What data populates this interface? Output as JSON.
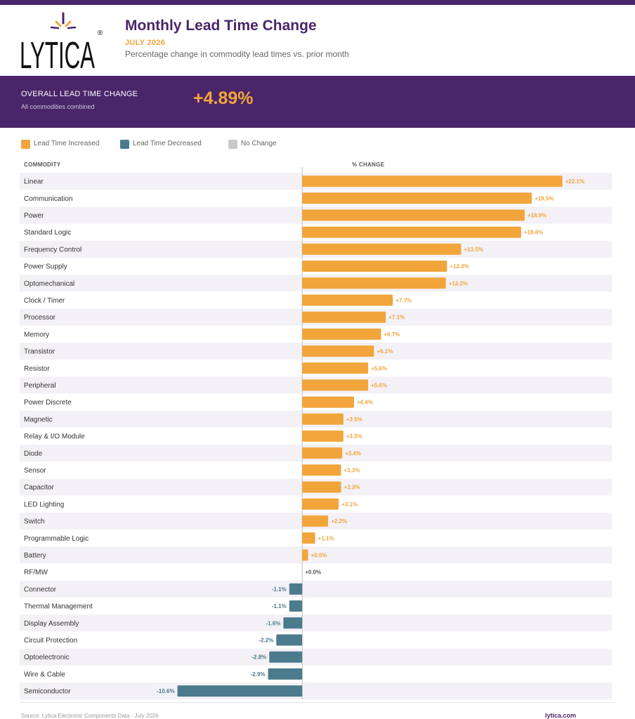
{
  "brand": {
    "logo_text": "LYTICA",
    "registered_mark": "®"
  },
  "header": {
    "title": "Monthly Lead Time Change",
    "month": "JULY 2026",
    "subtitle": "Percentage change in commodity lead times vs. prior month"
  },
  "summary": {
    "label": "OVERALL LEAD TIME CHANGE",
    "sublabel": "All commodities combined",
    "value": "+4.89%"
  },
  "legend": [
    {
      "label": "Lead Time Increased",
      "color": "#f2a53b"
    },
    {
      "label": "Lead Time Decreased",
      "color": "#4b7b8c"
    },
    {
      "label": "No Change",
      "color": "#c9c9c9"
    }
  ],
  "columns": {
    "commodity": "COMMODITY",
    "change": "% CHANGE"
  },
  "colors": {
    "increase": "#f2a53b",
    "decrease": "#4b7b8c",
    "nochange": "#c9c9c9",
    "brand_purple": "#4a2569",
    "row_stripe": "#f3f1f6"
  },
  "chart_data": {
    "type": "bar",
    "orientation": "horizontal",
    "categories": [
      "Linear",
      "Communication",
      "Power",
      "Standard Logic",
      "Frequency Control",
      "Power Supply",
      "Optomechanical",
      "Clock / Timer",
      "Processor",
      "Memory",
      "Transistor",
      "Resistor",
      "Peripheral",
      "Power Discrete",
      "Magnetic",
      "Relay & I/O Module",
      "Diode",
      "Sensor",
      "Capacitor",
      "LED Lighting",
      "Switch",
      "Programmable Logic",
      "Battery",
      "RF/MW",
      "Connector",
      "Thermal Management",
      "Display Assembly",
      "Circuit Protection",
      "Optoelectronic",
      "Wire & Cable",
      "Semiconductor"
    ],
    "values": [
      22.1,
      19.5,
      18.9,
      18.6,
      13.5,
      12.3,
      12.2,
      7.7,
      7.1,
      6.7,
      6.1,
      5.6,
      5.6,
      4.4,
      3.5,
      3.5,
      3.4,
      3.3,
      3.3,
      3.1,
      2.2,
      1.1,
      0.5,
      0.0,
      -1.1,
      -1.1,
      -1.6,
      -2.2,
      -2.8,
      -2.9,
      -10.6
    ],
    "labels": [
      "+22.1%",
      "+19.5%",
      "+18.9%",
      "+18.6%",
      "+13.5%",
      "+12.3%",
      "+12.2%",
      "+7.7%",
      "+7.1%",
      "+6.7%",
      "+6.1%",
      "+5.6%",
      "+5.6%",
      "+4.4%",
      "+3.5%",
      "+3.5%",
      "+3.4%",
      "+3.3%",
      "+3.3%",
      "+3.1%",
      "+2.2%",
      "+1.1%",
      "+0.5%",
      "+0.0%",
      "-1.1%",
      "-1.1%",
      "-1.6%",
      "-2.2%",
      "-2.8%",
      "-2.9%",
      "-10.6%"
    ],
    "xlim": [
      -24.0,
      26.3
    ],
    "grid": false
  },
  "footer": {
    "source": "Source: Lytica Electronic Components Data  ·  July 2026",
    "site": "lytica.com"
  }
}
